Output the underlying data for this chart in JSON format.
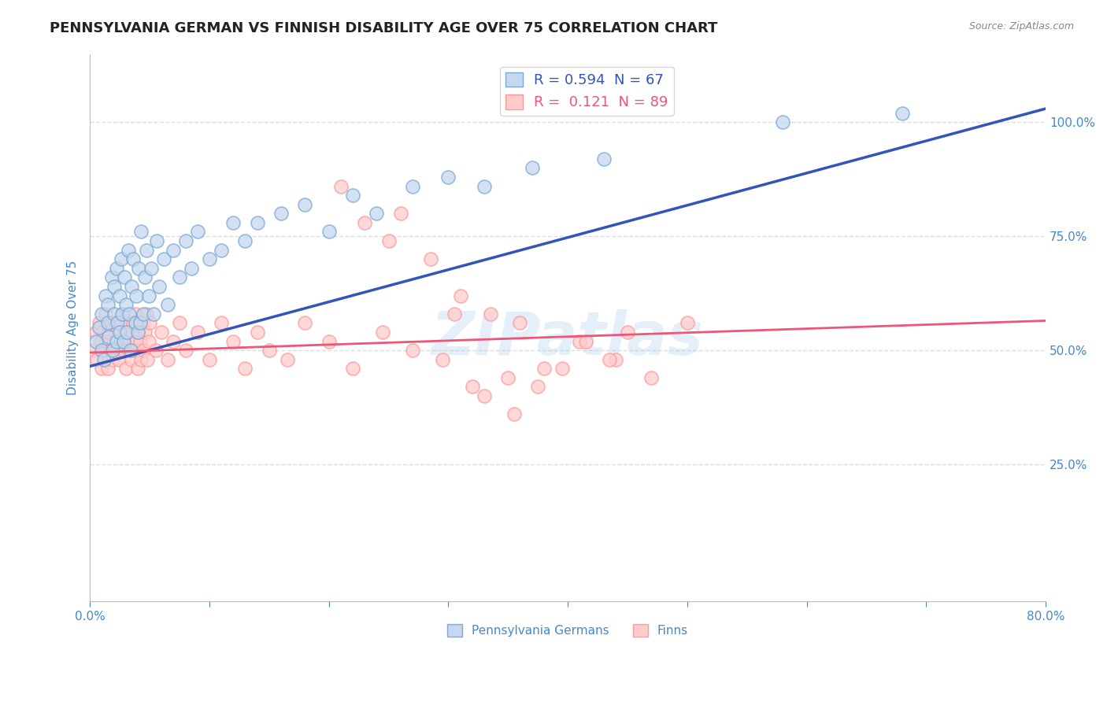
{
  "title": "PENNSYLVANIA GERMAN VS FINNISH DISABILITY AGE OVER 75 CORRELATION CHART",
  "source": "Source: ZipAtlas.com",
  "ylabel": "Disability Age Over 75",
  "xlim": [
    0.0,
    0.8
  ],
  "ylim": [
    -0.05,
    1.15
  ],
  "xticks": [
    0.0,
    0.1,
    0.2,
    0.3,
    0.4,
    0.5,
    0.6,
    0.7,
    0.8
  ],
  "xticklabels": [
    "0.0%",
    "",
    "",
    "",
    "",
    "",
    "",
    "",
    "80.0%"
  ],
  "yticks": [
    0.25,
    0.5,
    0.75,
    1.0
  ],
  "yticklabels": [
    "25.0%",
    "50.0%",
    "75.0%",
    "100.0%"
  ],
  "blue_R": 0.594,
  "blue_N": 67,
  "pink_R": 0.121,
  "pink_N": 89,
  "blue_fill_color": "#C5D8F0",
  "blue_edge_color": "#7BAAD4",
  "pink_fill_color": "#FFCCCC",
  "pink_edge_color": "#FF9999",
  "blue_line_color": "#3355BB",
  "pink_line_color": "#EE5577",
  "axis_label_color": "#4488CC",
  "watermark": "ZIPatlas",
  "legend_blue_label": "Pennsylvania Germans",
  "legend_pink_label": "Finns",
  "blue_scatter_x": [
    0.005,
    0.008,
    0.01,
    0.01,
    0.012,
    0.013,
    0.015,
    0.015,
    0.016,
    0.018,
    0.019,
    0.02,
    0.02,
    0.022,
    0.022,
    0.023,
    0.025,
    0.025,
    0.026,
    0.027,
    0.028,
    0.029,
    0.03,
    0.031,
    0.032,
    0.033,
    0.034,
    0.035,
    0.036,
    0.038,
    0.039,
    0.04,
    0.041,
    0.042,
    0.043,
    0.045,
    0.046,
    0.047,
    0.049,
    0.051,
    0.053,
    0.056,
    0.058,
    0.062,
    0.065,
    0.07,
    0.075,
    0.08,
    0.085,
    0.09,
    0.1,
    0.11,
    0.12,
    0.13,
    0.14,
    0.16,
    0.18,
    0.2,
    0.22,
    0.24,
    0.27,
    0.3,
    0.33,
    0.37,
    0.43,
    0.58,
    0.68
  ],
  "blue_scatter_y": [
    0.52,
    0.55,
    0.5,
    0.58,
    0.48,
    0.62,
    0.56,
    0.6,
    0.53,
    0.66,
    0.5,
    0.58,
    0.64,
    0.52,
    0.68,
    0.56,
    0.54,
    0.62,
    0.7,
    0.58,
    0.52,
    0.66,
    0.6,
    0.54,
    0.72,
    0.58,
    0.5,
    0.64,
    0.7,
    0.56,
    0.62,
    0.54,
    0.68,
    0.56,
    0.76,
    0.58,
    0.66,
    0.72,
    0.62,
    0.68,
    0.58,
    0.74,
    0.64,
    0.7,
    0.6,
    0.72,
    0.66,
    0.74,
    0.68,
    0.76,
    0.7,
    0.72,
    0.78,
    0.74,
    0.78,
    0.8,
    0.82,
    0.76,
    0.84,
    0.8,
    0.86,
    0.88,
    0.86,
    0.9,
    0.92,
    1.0,
    1.02
  ],
  "pink_scatter_x": [
    0.003,
    0.005,
    0.006,
    0.008,
    0.009,
    0.01,
    0.011,
    0.012,
    0.013,
    0.014,
    0.015,
    0.016,
    0.017,
    0.018,
    0.019,
    0.02,
    0.021,
    0.022,
    0.023,
    0.024,
    0.025,
    0.026,
    0.027,
    0.028,
    0.029,
    0.03,
    0.031,
    0.032,
    0.033,
    0.034,
    0.035,
    0.036,
    0.037,
    0.038,
    0.039,
    0.04,
    0.041,
    0.042,
    0.043,
    0.044,
    0.045,
    0.046,
    0.047,
    0.048,
    0.049,
    0.05,
    0.055,
    0.06,
    0.065,
    0.07,
    0.075,
    0.08,
    0.09,
    0.1,
    0.11,
    0.12,
    0.13,
    0.14,
    0.15,
    0.165,
    0.18,
    0.2,
    0.22,
    0.245,
    0.27,
    0.295,
    0.32,
    0.35,
    0.38,
    0.41,
    0.44,
    0.47,
    0.5,
    0.305,
    0.33,
    0.355,
    0.26,
    0.285,
    0.31,
    0.335,
    0.36,
    0.21,
    0.23,
    0.25,
    0.375,
    0.395,
    0.415,
    0.435,
    0.45
  ],
  "pink_scatter_y": [
    0.5,
    0.54,
    0.48,
    0.56,
    0.52,
    0.46,
    0.54,
    0.5,
    0.58,
    0.52,
    0.46,
    0.54,
    0.5,
    0.56,
    0.48,
    0.52,
    0.56,
    0.5,
    0.54,
    0.48,
    0.56,
    0.52,
    0.58,
    0.5,
    0.54,
    0.46,
    0.52,
    0.56,
    0.5,
    0.54,
    0.48,
    0.56,
    0.52,
    0.58,
    0.5,
    0.46,
    0.54,
    0.52,
    0.48,
    0.56,
    0.5,
    0.54,
    0.58,
    0.48,
    0.52,
    0.56,
    0.5,
    0.54,
    0.48,
    0.52,
    0.56,
    0.5,
    0.54,
    0.48,
    0.56,
    0.52,
    0.46,
    0.54,
    0.5,
    0.48,
    0.56,
    0.52,
    0.46,
    0.54,
    0.5,
    0.48,
    0.42,
    0.44,
    0.46,
    0.52,
    0.48,
    0.44,
    0.56,
    0.58,
    0.4,
    0.36,
    0.8,
    0.7,
    0.62,
    0.58,
    0.56,
    0.86,
    0.78,
    0.74,
    0.42,
    0.46,
    0.52,
    0.48,
    0.54
  ],
  "blue_trend_x": [
    0.0,
    0.8
  ],
  "blue_trend_y": [
    0.465,
    1.03
  ],
  "pink_trend_x": [
    0.0,
    0.8
  ],
  "pink_trend_y": [
    0.495,
    0.565
  ],
  "grid_color": "#DDDDDD",
  "grid_style": "--",
  "title_fontsize": 13,
  "axis_fontsize": 11,
  "tick_fontsize": 11
}
